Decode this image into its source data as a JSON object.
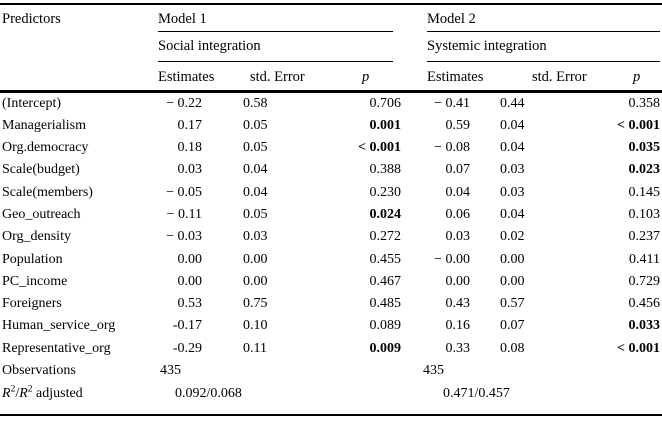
{
  "table": {
    "header": {
      "predictors_label": "Predictors",
      "model1": {
        "title": "Model 1",
        "subtitle": "Social integration",
        "col_estimates": "Estimates",
        "col_std_error": "std. Error",
        "col_p": "p"
      },
      "model2": {
        "title": "Model 2",
        "subtitle": "Systemic integration",
        "col_estimates": "Estimates",
        "col_std_error": "std. Error",
        "col_p": "p"
      }
    },
    "rows": [
      {
        "predictor": "(Intercept)",
        "m1_est": "− 0.22",
        "m1_se": "0.58",
        "m1_p": "0.706",
        "m1_p_bold": false,
        "m2_est": "− 0.41",
        "m2_se": "0.44",
        "m2_p": "0.358",
        "m2_p_bold": false
      },
      {
        "predictor": "Managerialism",
        "m1_est": "0.17",
        "m1_se": "0.05",
        "m1_p": "0.001",
        "m1_p_bold": true,
        "m2_est": "0.59",
        "m2_se": "0.04",
        "m2_p": "< 0.001",
        "m2_p_bold": true
      },
      {
        "predictor": "Org.democracy",
        "m1_est": "0.18",
        "m1_se": "0.05",
        "m1_p": "< 0.001",
        "m1_p_bold": true,
        "m2_est": "− 0.08",
        "m2_se": "0.04",
        "m2_p": "0.035",
        "m2_p_bold": true
      },
      {
        "predictor": "Scale(budget)",
        "m1_est": "0.03",
        "m1_se": "0.04",
        "m1_p": "0.388",
        "m1_p_bold": false,
        "m2_est": "0.07",
        "m2_se": "0.03",
        "m2_p": "0.023",
        "m2_p_bold": true
      },
      {
        "predictor": "Scale(members)",
        "m1_est": "− 0.05",
        "m1_se": "0.04",
        "m1_p": "0.230",
        "m1_p_bold": false,
        "m2_est": "0.04",
        "m2_se": "0.03",
        "m2_p": "0.145",
        "m2_p_bold": false
      },
      {
        "predictor": "Geo_outreach",
        "m1_est": "− 0.11",
        "m1_se": "0.05",
        "m1_p": "0.024",
        "m1_p_bold": true,
        "m2_est": "0.06",
        "m2_se": "0.04",
        "m2_p": "0.103",
        "m2_p_bold": false
      },
      {
        "predictor": "Org_density",
        "m1_est": "− 0.03",
        "m1_se": "0.03",
        "m1_p": "0.272",
        "m1_p_bold": false,
        "m2_est": "0.03",
        "m2_se": "0.02",
        "m2_p": "0.237",
        "m2_p_bold": false
      },
      {
        "predictor": "Population",
        "m1_est": "0.00",
        "m1_se": "0.00",
        "m1_p": "0.455",
        "m1_p_bold": false,
        "m2_est": "− 0.00",
        "m2_se": "0.00",
        "m2_p": "0.411",
        "m2_p_bold": false
      },
      {
        "predictor": "PC_income",
        "m1_est": "0.00",
        "m1_se": "0.00",
        "m1_p": "0.467",
        "m1_p_bold": false,
        "m2_est": "0.00",
        "m2_se": "0.00",
        "m2_p": "0.729",
        "m2_p_bold": false
      },
      {
        "predictor": "Foreigners",
        "m1_est": "0.53",
        "m1_se": "0.75",
        "m1_p": "0.485",
        "m1_p_bold": false,
        "m2_est": "0.43",
        "m2_se": "0.57",
        "m2_p": "0.456",
        "m2_p_bold": false
      },
      {
        "predictor": "Human_service_org",
        "m1_est": "-0.17",
        "m1_se": "0.10",
        "m1_p": "0.089",
        "m1_p_bold": false,
        "m2_est": "0.16",
        "m2_se": "0.07",
        "m2_p": "0.033",
        "m2_p_bold": true
      },
      {
        "predictor": "Representative_org",
        "m1_est": "-0.29",
        "m1_se": "0.11",
        "m1_p": "0.009",
        "m1_p_bold": true,
        "m2_est": "0.33",
        "m2_se": "0.08",
        "m2_p": "< 0.001",
        "m2_p_bold": true
      }
    ],
    "footer": {
      "observations_label": "Observations",
      "observations_m1": "435",
      "observations_m2": "435",
      "r2_label": {
        "r1": "R",
        "sup1": "2",
        "slash": "/",
        "r2": "R",
        "sup2": "2",
        "suffix": " adjusted"
      },
      "r2_m1": "0.092/0.068",
      "r2_m2": "0.471/0.457"
    }
  }
}
